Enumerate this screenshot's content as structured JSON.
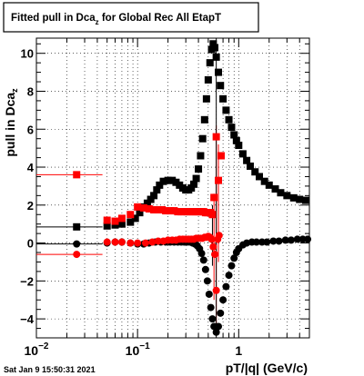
{
  "title": {
    "main": "Fitted pull in Dca",
    "sub": "z",
    "rest": " for Global Rec All EtapT"
  },
  "footer": {
    "timestamp": "Sat Jan  9 15:50:31 2021"
  },
  "colors": {
    "black": "#000000",
    "red": "#ff0000",
    "grid": "#000000"
  },
  "chart_data": {
    "type": "scatter",
    "xscale": "log",
    "xlim": [
      0.01,
      5.0
    ],
    "ylim": [
      -5.0,
      10.8
    ],
    "grid": true,
    "ylabel": {
      "main": "pull in Dca",
      "sub": "z"
    },
    "xlabel": "pT/|q| (GeV/c)",
    "x_ticks": [
      {
        "value": 0.01,
        "base": "10",
        "exp": "−2"
      },
      {
        "value": 0.1,
        "base": "10",
        "exp": "−1"
      },
      {
        "value": 1,
        "base": "1",
        "exp": ""
      }
    ],
    "y_ticks": [
      {
        "value": -4,
        "label": "−4"
      },
      {
        "value": -2,
        "label": "−2"
      },
      {
        "value": 0,
        "label": "0"
      },
      {
        "value": 2,
        "label": "2"
      },
      {
        "value": 4,
        "label": "4"
      },
      {
        "value": 6,
        "label": "6"
      },
      {
        "value": 8,
        "label": "8"
      },
      {
        "value": 10,
        "label": "10"
      }
    ],
    "series": [
      {
        "color": "#000000",
        "marker": "square",
        "points": [
          [
            0.025,
            0.85
          ],
          [
            0.05,
            0.9
          ],
          [
            0.06,
            0.95
          ],
          [
            0.07,
            1.0
          ],
          [
            0.085,
            1.1
          ],
          [
            0.095,
            1.3
          ],
          [
            0.105,
            1.6
          ],
          [
            0.115,
            1.9
          ],
          [
            0.125,
            2.1
          ],
          [
            0.135,
            2.3
          ],
          [
            0.145,
            2.5
          ],
          [
            0.155,
            2.8
          ],
          [
            0.165,
            3.05
          ],
          [
            0.18,
            3.25
          ],
          [
            0.2,
            3.3
          ],
          [
            0.22,
            3.3
          ],
          [
            0.24,
            3.2
          ],
          [
            0.26,
            3.05
          ],
          [
            0.28,
            2.9
          ],
          [
            0.3,
            2.8
          ],
          [
            0.32,
            2.8
          ],
          [
            0.34,
            2.9
          ],
          [
            0.36,
            3.1
          ],
          [
            0.38,
            3.4
          ],
          [
            0.4,
            3.9
          ],
          [
            0.42,
            4.6
          ],
          [
            0.44,
            5.5
          ],
          [
            0.46,
            6.5
          ],
          [
            0.48,
            7.6
          ],
          [
            0.5,
            8.6
          ],
          [
            0.52,
            9.5
          ],
          [
            0.54,
            10.2
          ],
          [
            0.56,
            10.5
          ],
          [
            0.58,
            10.3
          ],
          [
            0.6,
            9.8
          ],
          [
            0.63,
            9.0
          ],
          [
            0.66,
            8.3
          ],
          [
            0.7,
            7.6
          ],
          [
            0.75,
            7.0
          ],
          [
            0.8,
            6.5
          ],
          [
            0.85,
            6.1
          ],
          [
            0.9,
            5.7
          ],
          [
            0.95,
            5.4
          ],
          [
            1.0,
            5.15
          ],
          [
            1.1,
            4.7
          ],
          [
            1.2,
            4.35
          ],
          [
            1.3,
            4.05
          ],
          [
            1.45,
            3.75
          ],
          [
            1.6,
            3.5
          ],
          [
            1.8,
            3.25
          ],
          [
            2.0,
            3.05
          ],
          [
            2.3,
            2.85
          ],
          [
            2.6,
            2.65
          ],
          [
            3.0,
            2.5
          ],
          [
            3.5,
            2.38
          ],
          [
            4.0,
            2.3
          ],
          [
            4.6,
            2.25
          ]
        ]
      },
      {
        "color": "#000000",
        "marker": "circle",
        "points": [
          [
            0.025,
            -0.05
          ],
          [
            0.05,
            0.0
          ],
          [
            0.06,
            0.05
          ],
          [
            0.07,
            0.05
          ],
          [
            0.085,
            0.0
          ],
          [
            0.1,
            -0.05
          ],
          [
            0.115,
            -0.05
          ],
          [
            0.13,
            0.0
          ],
          [
            0.15,
            0.05
          ],
          [
            0.17,
            0.05
          ],
          [
            0.19,
            0.05
          ],
          [
            0.21,
            0.05
          ],
          [
            0.23,
            0.05
          ],
          [
            0.25,
            0.05
          ],
          [
            0.27,
            0.05
          ],
          [
            0.29,
            0.05
          ],
          [
            0.31,
            0.05
          ],
          [
            0.33,
            0.05
          ],
          [
            0.35,
            0.0
          ],
          [
            0.37,
            -0.05
          ],
          [
            0.39,
            -0.15
          ],
          [
            0.41,
            -0.3
          ],
          [
            0.43,
            -0.55
          ],
          [
            0.45,
            -0.9
          ],
          [
            0.47,
            -1.4
          ],
          [
            0.49,
            -2.0
          ],
          [
            0.51,
            -2.7
          ],
          [
            0.53,
            -3.4
          ],
          [
            0.55,
            -4.0
          ],
          [
            0.57,
            -4.4
          ],
          [
            0.6,
            -4.7
          ],
          [
            0.63,
            -4.4
          ],
          [
            0.66,
            -3.7
          ],
          [
            0.7,
            -3.0
          ],
          [
            0.75,
            -2.3
          ],
          [
            0.8,
            -1.7
          ],
          [
            0.85,
            -1.2
          ],
          [
            0.9,
            -0.8
          ],
          [
            0.95,
            -0.5
          ],
          [
            1.0,
            -0.3
          ],
          [
            1.1,
            -0.1
          ],
          [
            1.2,
            0.0
          ],
          [
            1.35,
            0.05
          ],
          [
            1.5,
            0.05
          ],
          [
            1.7,
            0.05
          ],
          [
            1.9,
            0.05
          ],
          [
            2.2,
            0.1
          ],
          [
            2.5,
            0.1
          ],
          [
            2.9,
            0.15
          ],
          [
            3.3,
            0.15
          ],
          [
            3.8,
            0.2
          ],
          [
            4.3,
            0.2
          ],
          [
            4.8,
            0.2
          ]
        ]
      },
      {
        "color": "#ff0000",
        "marker": "square",
        "points": [
          [
            0.025,
            3.6
          ],
          [
            0.05,
            1.2
          ],
          [
            0.06,
            1.15
          ],
          [
            0.07,
            1.3
          ],
          [
            0.085,
            1.5
          ],
          [
            0.1,
            1.9
          ],
          [
            0.115,
            1.85
          ],
          [
            0.13,
            1.8
          ],
          [
            0.145,
            1.75
          ],
          [
            0.16,
            1.75
          ],
          [
            0.175,
            1.75
          ],
          [
            0.19,
            1.7
          ],
          [
            0.21,
            1.7
          ],
          [
            0.23,
            1.7
          ],
          [
            0.25,
            1.65
          ],
          [
            0.27,
            1.65
          ],
          [
            0.29,
            1.65
          ],
          [
            0.31,
            1.65
          ],
          [
            0.33,
            1.65
          ],
          [
            0.35,
            1.65
          ],
          [
            0.37,
            1.65
          ],
          [
            0.39,
            1.65
          ],
          [
            0.41,
            1.65
          ],
          [
            0.43,
            1.65
          ],
          [
            0.45,
            1.65
          ],
          [
            0.47,
            1.6
          ],
          [
            0.49,
            1.6
          ],
          [
            0.51,
            1.6
          ],
          [
            0.53,
            1.6
          ],
          [
            0.55,
            1.5
          ],
          [
            0.57,
            2.4
          ],
          [
            0.6,
            5.6
          ],
          [
            0.63,
            3.3
          ],
          [
            0.67,
            4.6
          ]
        ]
      },
      {
        "color": "#ff0000",
        "marker": "circle",
        "points": [
          [
            0.025,
            -0.6
          ],
          [
            0.05,
            0.05
          ],
          [
            0.06,
            0.05
          ],
          [
            0.07,
            0.05
          ],
          [
            0.085,
            0.0
          ],
          [
            0.1,
            0.0
          ],
          [
            0.12,
            0.0
          ],
          [
            0.14,
            0.05
          ],
          [
            0.16,
            0.1
          ],
          [
            0.18,
            0.1
          ],
          [
            0.2,
            0.15
          ],
          [
            0.22,
            0.15
          ],
          [
            0.24,
            0.15
          ],
          [
            0.26,
            0.2
          ],
          [
            0.28,
            0.2
          ],
          [
            0.3,
            0.2
          ],
          [
            0.32,
            0.2
          ],
          [
            0.34,
            0.2
          ],
          [
            0.36,
            0.2
          ],
          [
            0.38,
            0.25
          ],
          [
            0.4,
            0.25
          ],
          [
            0.42,
            0.25
          ],
          [
            0.44,
            0.25
          ],
          [
            0.46,
            0.3
          ],
          [
            0.48,
            0.3
          ],
          [
            0.5,
            0.35
          ],
          [
            0.52,
            0.3
          ],
          [
            0.54,
            0.2
          ],
          [
            0.56,
            -0.2
          ],
          [
            0.58,
            -0.6
          ],
          [
            0.6,
            -2.5
          ],
          [
            0.62,
            0.2
          ],
          [
            0.64,
            0.4
          ]
        ]
      }
    ]
  }
}
